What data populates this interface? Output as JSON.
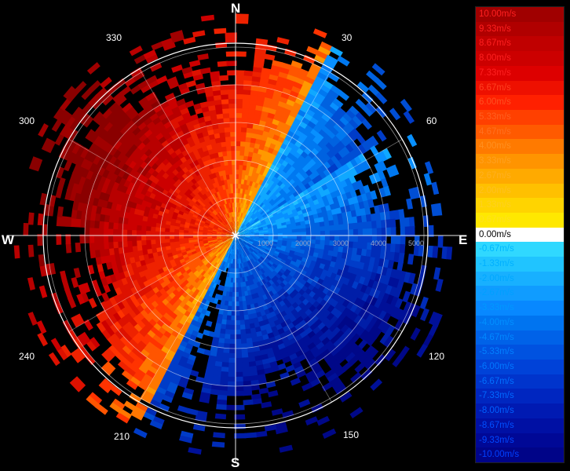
{
  "compass": {
    "n": "N",
    "e": "E",
    "s": "S",
    "w": "W"
  },
  "degree_labels": [
    "30",
    "60",
    "120",
    "150",
    "210",
    "240",
    "300",
    "330"
  ],
  "range_labels": [
    "1000",
    "2000",
    "3000",
    "4000",
    "5000"
  ],
  "legend": {
    "labels": [
      "10.00m/s",
      "9.33m/s",
      "8.67m/s",
      "8.00m/s",
      "7.33m/s",
      "6.67m/s",
      "6.00m/s",
      "5.33m/s",
      "4.67m/s",
      "4.00m/s",
      "3.33m/s",
      "2.67m/s",
      "2.00m/s",
      "1.33m/s",
      "0.67m/s",
      "0.00m/s",
      "-0.67m/s",
      "-1.33m/s",
      "-2.00m/s",
      "-2.67m/s",
      "-3.33m/s",
      "-4.00m/s",
      "-4.67m/s",
      "-5.33m/s",
      "-6.00m/s",
      "-6.67m/s",
      "-7.33m/s",
      "-8.00m/s",
      "-8.67m/s",
      "-9.33m/s",
      "-10.00m/s"
    ],
    "colors": [
      "#a00000",
      "#b00000",
      "#c00000",
      "#cc0000",
      "#dd0000",
      "#ee1000",
      "#ff2000",
      "#ff4000",
      "#ff5a00",
      "#ff7a00",
      "#ff9400",
      "#ffaa00",
      "#ffc000",
      "#ffd400",
      "#ffe800",
      "#ffffff",
      "#30d8ff",
      "#20c4ff",
      "#18b0ff",
      "#109cff",
      "#0888ff",
      "#0074f0",
      "#0062e8",
      "#0052e0",
      "#0042d8",
      "#0034cc",
      "#0026c0",
      "#001ab2",
      "#0010a4",
      "#000896",
      "#000488"
    ],
    "label_colors": [
      "#ff2020",
      "#ff2020",
      "#ff2020",
      "#ff2020",
      "#ff2020",
      "#ff4020",
      "#ff5020",
      "#ff6020",
      "#ff7020",
      "#ff9020",
      "#ffa020",
      "#ffb020",
      "#ffc020",
      "#ffd020",
      "#ffe020",
      "#000000",
      "#00b8ff",
      "#00b0ff",
      "#00a8ff",
      "#00a0ff",
      "#0098ff",
      "#0090ff",
      "#0088ff",
      "#0080ff",
      "#0078ff",
      "#0070ff",
      "#0068ff",
      "#0060ff",
      "#0050ff",
      "#0048ff",
      "#0040ff"
    ]
  },
  "colors": {
    "background": "#000000",
    "rings": "#ffffff"
  }
}
